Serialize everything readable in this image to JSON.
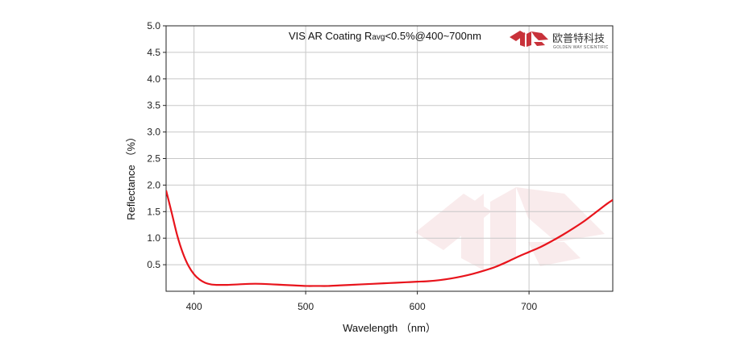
{
  "chart_data": {
    "type": "line",
    "title_prefix": "VIS AR Coating R",
    "title_sub": "avg",
    "title_suffix": "<0.5%@400~700nm",
    "xlabel": "Wavelength （nm）",
    "ylabel": "Reflectance （%）",
    "xlim": [
      375,
      775
    ],
    "ylim": [
      0,
      5.0
    ],
    "x_ticks": [
      400,
      500,
      600,
      700
    ],
    "y_ticks": [
      0.5,
      1.0,
      1.5,
      2.0,
      2.5,
      3.0,
      3.5,
      4.0,
      4.5,
      5.0
    ],
    "grid": true,
    "series": [
      {
        "color": "#e8141c",
        "x": [
          375,
          380,
          385,
          390,
          395,
          400,
          405,
          410,
          415,
          420,
          425,
          430,
          440,
          450,
          460,
          470,
          480,
          490,
          500,
          510,
          520,
          530,
          540,
          550,
          560,
          570,
          580,
          590,
          600,
          610,
          620,
          630,
          640,
          650,
          660,
          670,
          680,
          690,
          700,
          710,
          720,
          730,
          740,
          750,
          760,
          770,
          775
        ],
        "y": [
          1.9,
          1.48,
          1.05,
          0.72,
          0.48,
          0.32,
          0.22,
          0.16,
          0.13,
          0.12,
          0.12,
          0.12,
          0.13,
          0.14,
          0.14,
          0.13,
          0.12,
          0.11,
          0.1,
          0.1,
          0.1,
          0.11,
          0.12,
          0.13,
          0.14,
          0.15,
          0.16,
          0.17,
          0.18,
          0.19,
          0.21,
          0.24,
          0.28,
          0.33,
          0.39,
          0.46,
          0.55,
          0.65,
          0.74,
          0.83,
          0.94,
          1.06,
          1.19,
          1.33,
          1.49,
          1.65,
          1.72
        ]
      }
    ]
  },
  "brand": {
    "name_cn": "欧普特科技",
    "name_en": "GOLDEN WAY SCIENTIFIC",
    "logo_color": "#c8323a"
  }
}
